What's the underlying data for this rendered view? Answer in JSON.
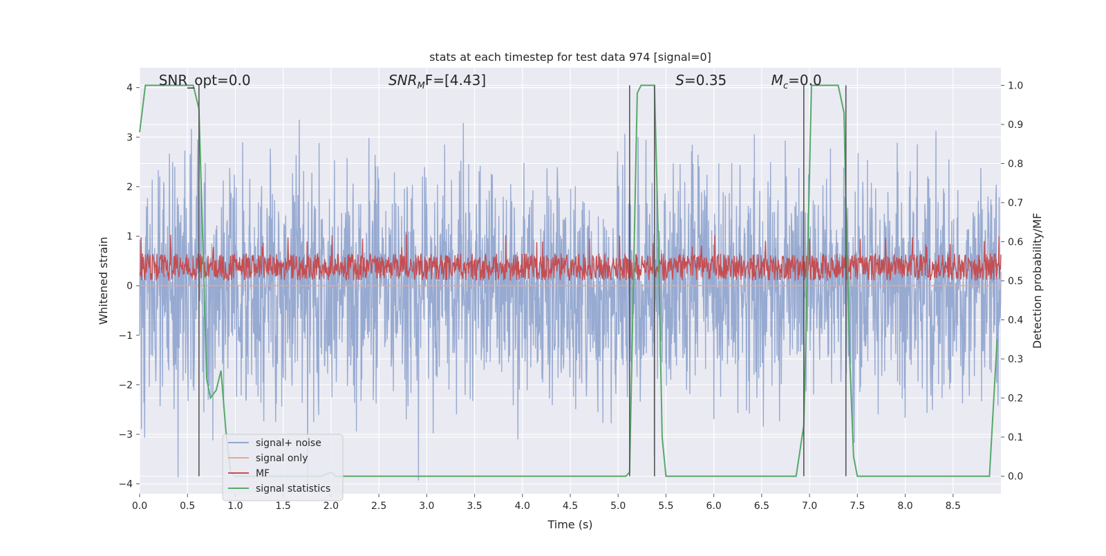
{
  "chart_data": {
    "type": "line",
    "title": "stats at each timestep for test data 974 [signal=0]",
    "xlabel": "Time (s)",
    "ylabel": "Whitened strain",
    "ylabel_right": "Detection probability/MF",
    "xlim": [
      0.0,
      9.0
    ],
    "ylim": [
      -4.2,
      4.4
    ],
    "ylim_right": [
      -0.045,
      1.045
    ],
    "xticks": [
      "0.0",
      "0.5",
      "1.0",
      "1.5",
      "2.0",
      "2.5",
      "3.0",
      "3.5",
      "4.0",
      "4.5",
      "5.0",
      "5.5",
      "6.0",
      "6.5",
      "7.0",
      "7.5",
      "8.0",
      "8.5"
    ],
    "xtick_values": [
      0.0,
      0.5,
      1.0,
      1.5,
      2.0,
      2.5,
      3.0,
      3.5,
      4.0,
      4.5,
      5.0,
      5.5,
      6.0,
      6.5,
      7.0,
      7.5,
      8.0,
      8.5
    ],
    "yticks": [
      "−4",
      "−3",
      "−2",
      "−1",
      "0",
      "1",
      "2",
      "3",
      "4"
    ],
    "ytick_values": [
      -4,
      -3,
      -2,
      -1,
      0,
      1,
      2,
      3,
      4
    ],
    "yticks_right": [
      "0.0",
      "0.1",
      "0.2",
      "0.3",
      "0.4",
      "0.5",
      "0.6",
      "0.7",
      "0.8",
      "0.9",
      "1.0"
    ],
    "ytick_values_right": [
      0.0,
      0.1,
      0.2,
      0.3,
      0.4,
      0.5,
      0.6,
      0.7,
      0.8,
      0.9,
      1.0
    ],
    "grid": true,
    "background": "#EAEAF2",
    "annotations": [
      {
        "id": "snr-opt",
        "text": "SNR_opt=0.0",
        "x": 0.2,
        "y": 4.15
      },
      {
        "id": "snr-mf",
        "text": "SNR",
        "sub": "M",
        "tail": "F=[4.43]",
        "x": 2.6,
        "y": 4.15
      },
      {
        "id": "s-value",
        "text": "S",
        "tail": "=0.35",
        "x": 5.6,
        "y": 4.15
      },
      {
        "id": "mc-value",
        "text": "M",
        "sub": "c",
        "tail": "=0.0",
        "x": 6.6,
        "y": 4.15
      }
    ],
    "vertical_lines": [
      0.62,
      5.12,
      5.38,
      6.94,
      7.38
    ],
    "legend": {
      "position": "lower-left",
      "entries": [
        {
          "label": "signal+ noise",
          "color": "#92A6CF"
        },
        {
          "label": "signal only",
          "color": "#E8A98E"
        },
        {
          "label": "MF",
          "color": "#C44E52"
        },
        {
          "label": "signal statistics",
          "color": "#55A868"
        }
      ]
    },
    "series": [
      {
        "name": "signal+ noise",
        "axis": "left",
        "color": "#92A6CF",
        "description_points": "dense noise roughly symmetric around 0, typical amplitude about ±2.2, peaks up to ±4",
        "x_range": [
          0.0,
          9.0
        ],
        "typical_amplitude": 2.2,
        "max_amplitude": 4.0
      },
      {
        "name": "signal only",
        "axis": "left",
        "color": "#E8A98E",
        "constant": 0.0
      },
      {
        "name": "MF",
        "axis": "right",
        "color": "#C44E52",
        "x_range": [
          0.0,
          9.0
        ],
        "baseline": 0.5,
        "typical_top": 0.57,
        "max": 0.62
      },
      {
        "name": "signal statistics",
        "axis": "right",
        "color": "#55A868",
        "x": [
          0.0,
          0.06,
          0.1,
          0.2,
          0.3,
          0.4,
          0.5,
          0.56,
          0.62,
          0.66,
          0.7,
          0.74,
          0.8,
          0.85,
          0.9,
          0.95,
          1.0,
          1.5,
          1.9,
          2.0,
          2.05,
          2.1,
          3.0,
          4.0,
          5.0,
          5.08,
          5.12,
          5.16,
          5.2,
          5.24,
          5.28,
          5.3,
          5.34,
          5.38,
          5.42,
          5.46,
          5.5,
          6.0,
          6.5,
          6.86,
          6.94,
          6.98,
          7.02,
          7.1,
          7.2,
          7.3,
          7.36,
          7.38,
          7.42,
          7.46,
          7.5,
          8.0,
          8.5,
          8.88,
          8.96
        ],
        "y": [
          0.88,
          1.0,
          1.0,
          1.0,
          1.0,
          1.0,
          1.0,
          1.0,
          0.94,
          0.6,
          0.25,
          0.2,
          0.22,
          0.27,
          0.12,
          0.01,
          0.0,
          0.0,
          0.0,
          0.01,
          0.0,
          0.0,
          0.0,
          0.0,
          0.0,
          0.0,
          0.01,
          0.5,
          0.98,
          1.0,
          1.0,
          1.0,
          1.0,
          1.0,
          0.6,
          0.1,
          0.0,
          0.0,
          0.0,
          0.0,
          0.13,
          0.55,
          1.0,
          1.0,
          1.0,
          1.0,
          0.93,
          0.7,
          0.3,
          0.05,
          0.0,
          0.0,
          0.0,
          0.0,
          0.35
        ]
      }
    ]
  }
}
